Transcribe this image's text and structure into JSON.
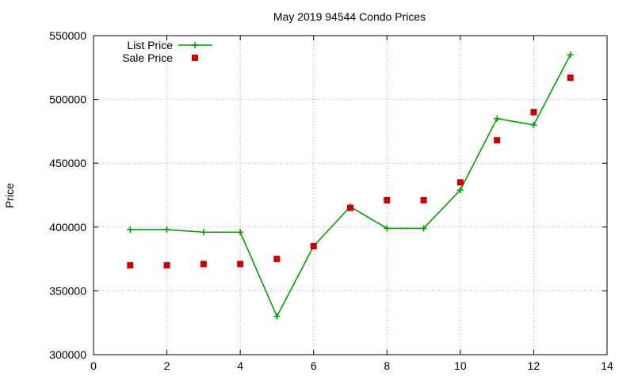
{
  "chart_data": {
    "type": "line",
    "title": "May 2019 94544 Condo Prices",
    "xlabel": "",
    "ylabel": "Price",
    "xlim": [
      0,
      14
    ],
    "ylim": [
      300000,
      550000
    ],
    "x_ticks": [
      0,
      2,
      4,
      6,
      8,
      10,
      12,
      14
    ],
    "y_ticks": [
      300000,
      350000,
      400000,
      450000,
      500000,
      550000
    ],
    "grid": true,
    "legend_position": "top-left",
    "series": [
      {
        "name": "List Price",
        "style": "line-with-plus-markers",
        "color": "#009e00",
        "x": [
          1,
          2,
          3,
          4,
          5,
          6,
          7,
          8,
          9,
          10,
          11,
          12,
          13
        ],
        "values": [
          398000,
          398000,
          396000,
          396000,
          330000,
          385000,
          416000,
          399000,
          399000,
          429000,
          485000,
          480000,
          535000
        ]
      },
      {
        "name": "Sale Price",
        "style": "square-markers",
        "color": "#cc0000",
        "x": [
          1,
          2,
          3,
          4,
          5,
          6,
          7,
          8,
          9,
          10,
          11,
          12,
          13
        ],
        "values": [
          370000,
          370000,
          371000,
          371000,
          375000,
          385000,
          415000,
          421000,
          421000,
          435000,
          468000,
          490000,
          517000
        ]
      }
    ]
  }
}
